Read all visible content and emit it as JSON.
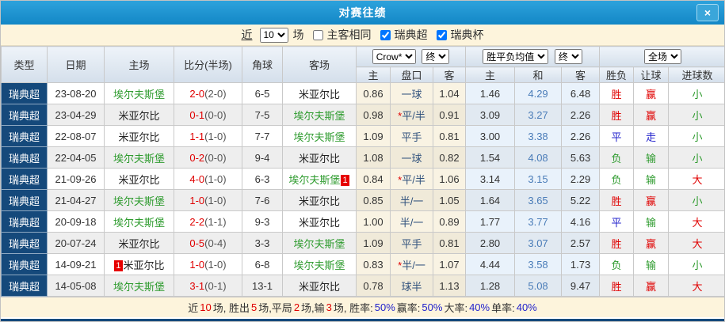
{
  "title": "对赛往绩",
  "icons": {
    "close": "×",
    "dropdown": "▼"
  },
  "toolbar": {
    "recent_label": "近",
    "count_value": "10",
    "matches_label": "场",
    "same_venue": {
      "label": "主客相同",
      "checked": false
    },
    "league": {
      "label": "瑞典超",
      "checked": true
    },
    "cup": {
      "label": "瑞典杯",
      "checked": true
    }
  },
  "header": {
    "type": "类型",
    "date": "日期",
    "home": "主场",
    "score": "比分(半场)",
    "corner": "角球",
    "away": "客场",
    "odds_source_select": "Crow*",
    "odds_time_select": "终",
    "avg_select": "胜平负均值",
    "avg_time_select": "终",
    "scope_select": "全场",
    "sub": {
      "odds_home": "主",
      "handicap": "盘口",
      "odds_away": "客",
      "avg_home": "主",
      "avg_draw": "和",
      "avg_away": "客",
      "result": "胜负",
      "handicap_result": "让球",
      "goals": "进球数"
    }
  },
  "colors": {
    "red": "#e00000",
    "green": "#2e9b2e",
    "blue": "#2323cc",
    "team_green": "#2e9b2e",
    "team_black": "#222222",
    "score_ft": "#e00000",
    "score_ht": "#555555",
    "handicap_navy": "#31527d",
    "avg_draw_blue": "#4a7cb8",
    "plain": "#333333"
  },
  "table": {
    "rows": [
      {
        "type": "瑞典超",
        "date": "23-08-20",
        "home": {
          "name": "埃尔夫斯堡",
          "green": true
        },
        "ft": "2-0",
        "ht": "(2-0)",
        "corner": "6-5",
        "away": {
          "name": "米亚尔比",
          "green": false
        },
        "o1": "0.86",
        "hcap": "一球",
        "star": false,
        "o2": "1.04",
        "a1": "1.46",
        "a2": "4.29",
        "a3": "6.48",
        "res": [
          "胜",
          "red"
        ],
        "hres": [
          "赢",
          "red"
        ],
        "goals": [
          "小",
          "green"
        ]
      },
      {
        "type": "瑞典超",
        "date": "23-04-29",
        "home": {
          "name": "米亚尔比",
          "green": false
        },
        "ft": "0-1",
        "ht": "(0-0)",
        "corner": "7-5",
        "away": {
          "name": "埃尔夫斯堡",
          "green": true
        },
        "o1": "0.98",
        "hcap": "平/半",
        "star": true,
        "o2": "0.91",
        "a1": "3.09",
        "a2": "3.27",
        "a3": "2.26",
        "res": [
          "胜",
          "red"
        ],
        "hres": [
          "赢",
          "red"
        ],
        "goals": [
          "小",
          "green"
        ]
      },
      {
        "type": "瑞典超",
        "date": "22-08-07",
        "home": {
          "name": "米亚尔比",
          "green": false
        },
        "ft": "1-1",
        "ht": "(1-0)",
        "corner": "7-7",
        "away": {
          "name": "埃尔夫斯堡",
          "green": true
        },
        "o1": "1.09",
        "hcap": "平手",
        "star": false,
        "o2": "0.81",
        "a1": "3.00",
        "a2": "3.38",
        "a3": "2.26",
        "res": [
          "平",
          "blue"
        ],
        "hres": [
          "走",
          "blue"
        ],
        "goals": [
          "小",
          "green"
        ]
      },
      {
        "type": "瑞典超",
        "date": "22-04-05",
        "home": {
          "name": "埃尔夫斯堡",
          "green": true
        },
        "ft": "0-2",
        "ht": "(0-0)",
        "corner": "9-4",
        "away": {
          "name": "米亚尔比",
          "green": false
        },
        "o1": "1.08",
        "hcap": "一球",
        "star": false,
        "o2": "0.82",
        "a1": "1.54",
        "a2": "4.08",
        "a3": "5.63",
        "res": [
          "负",
          "green"
        ],
        "hres": [
          "输",
          "green"
        ],
        "goals": [
          "小",
          "green"
        ]
      },
      {
        "type": "瑞典超",
        "date": "21-09-26",
        "home": {
          "name": "米亚尔比",
          "green": false
        },
        "ft": "4-0",
        "ht": "(1-0)",
        "corner": "6-3",
        "away": {
          "name": "埃尔夫斯堡",
          "green": true,
          "badge": "1",
          "badge_pos": "after"
        },
        "o1": "0.84",
        "hcap": "平/半",
        "star": true,
        "o2": "1.06",
        "a1": "3.14",
        "a2": "3.15",
        "a3": "2.29",
        "res": [
          "负",
          "green"
        ],
        "hres": [
          "输",
          "green"
        ],
        "goals": [
          "大",
          "red"
        ]
      },
      {
        "type": "瑞典超",
        "date": "21-04-27",
        "home": {
          "name": "埃尔夫斯堡",
          "green": true
        },
        "ft": "1-0",
        "ht": "(1-0)",
        "corner": "7-6",
        "away": {
          "name": "米亚尔比",
          "green": false
        },
        "o1": "0.85",
        "hcap": "半/一",
        "star": false,
        "o2": "1.05",
        "a1": "1.64",
        "a2": "3.65",
        "a3": "5.22",
        "res": [
          "胜",
          "red"
        ],
        "hres": [
          "赢",
          "red"
        ],
        "goals": [
          "小",
          "green"
        ]
      },
      {
        "type": "瑞典超",
        "date": "20-09-18",
        "home": {
          "name": "埃尔夫斯堡",
          "green": true
        },
        "ft": "2-2",
        "ht": "(1-1)",
        "corner": "9-3",
        "away": {
          "name": "米亚尔比",
          "green": false
        },
        "o1": "1.00",
        "hcap": "半/一",
        "star": false,
        "o2": "0.89",
        "a1": "1.77",
        "a2": "3.77",
        "a3": "4.16",
        "res": [
          "平",
          "blue"
        ],
        "hres": [
          "输",
          "green"
        ],
        "goals": [
          "大",
          "red"
        ]
      },
      {
        "type": "瑞典超",
        "date": "20-07-24",
        "home": {
          "name": "米亚尔比",
          "green": false
        },
        "ft": "0-5",
        "ht": "(0-4)",
        "corner": "3-3",
        "away": {
          "name": "埃尔夫斯堡",
          "green": true
        },
        "o1": "1.09",
        "hcap": "平手",
        "star": false,
        "o2": "0.81",
        "a1": "2.80",
        "a2": "3.07",
        "a3": "2.57",
        "res": [
          "胜",
          "red"
        ],
        "hres": [
          "赢",
          "red"
        ],
        "goals": [
          "大",
          "red"
        ]
      },
      {
        "type": "瑞典超",
        "date": "14-09-21",
        "home": {
          "name": "米亚尔比",
          "green": false,
          "badge": "1",
          "badge_pos": "before"
        },
        "ft": "1-0",
        "ht": "(1-0)",
        "corner": "6-8",
        "away": {
          "name": "埃尔夫斯堡",
          "green": true
        },
        "o1": "0.83",
        "hcap": "半/一",
        "star": true,
        "o2": "1.07",
        "a1": "4.44",
        "a2": "3.58",
        "a3": "1.73",
        "res": [
          "负",
          "green"
        ],
        "hres": [
          "输",
          "green"
        ],
        "goals": [
          "小",
          "green"
        ]
      },
      {
        "type": "瑞典超",
        "date": "14-05-08",
        "home": {
          "name": "埃尔夫斯堡",
          "green": true
        },
        "ft": "3-1",
        "ht": "(0-1)",
        "corner": "13-1",
        "away": {
          "name": "米亚尔比",
          "green": false
        },
        "o1": "0.78",
        "hcap": "球半",
        "star": false,
        "o2": "1.13",
        "a1": "1.28",
        "a2": "5.08",
        "a3": "9.47",
        "res": [
          "胜",
          "red"
        ],
        "hres": [
          "赢",
          "red"
        ],
        "goals": [
          "大",
          "red"
        ]
      }
    ]
  },
  "summary": {
    "segments": [
      {
        "text": "近 ",
        "color": "plain"
      },
      {
        "text": "10",
        "color": "red"
      },
      {
        "text": " 场, 胜出 ",
        "color": "plain"
      },
      {
        "text": "5",
        "color": "red"
      },
      {
        "text": " 场,平局 ",
        "color": "plain"
      },
      {
        "text": "2",
        "color": "red"
      },
      {
        "text": " 场,输 ",
        "color": "plain"
      },
      {
        "text": "3",
        "color": "red"
      },
      {
        "text": " 场, 胜率: ",
        "color": "plain"
      },
      {
        "text": "50%",
        "color": "blue"
      },
      {
        "text": " 赢率: ",
        "color": "plain"
      },
      {
        "text": "50%",
        "color": "blue"
      },
      {
        "text": " 大率: ",
        "color": "plain"
      },
      {
        "text": "40%",
        "color": "blue"
      },
      {
        "text": " 单率: ",
        "color": "plain"
      },
      {
        "text": "40%",
        "color": "blue"
      }
    ]
  }
}
